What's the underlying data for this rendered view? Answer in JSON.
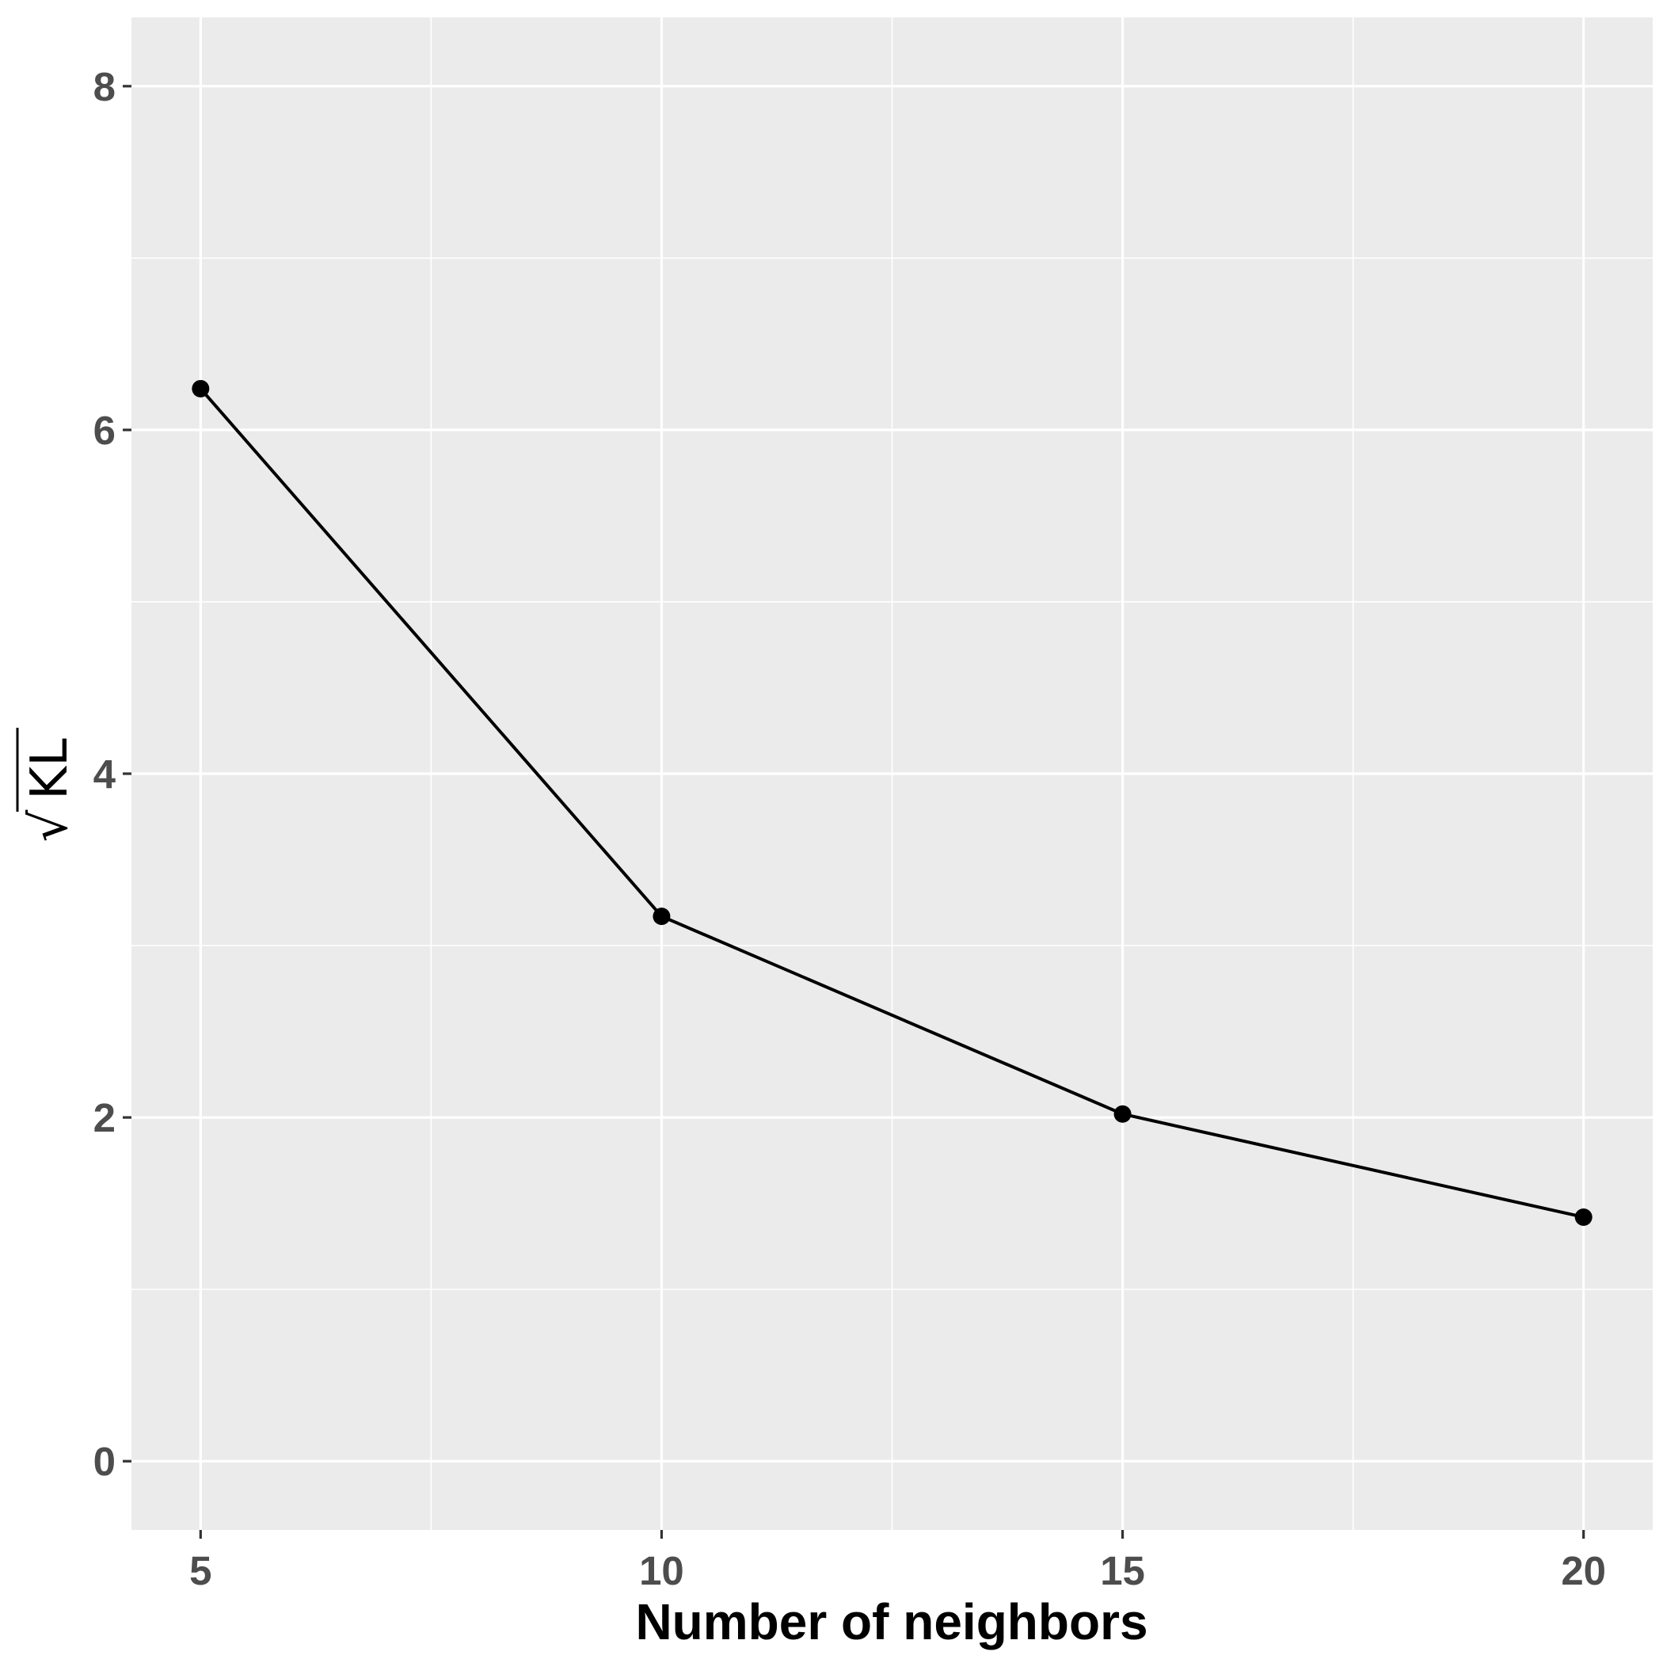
{
  "chart_data": {
    "type": "line",
    "title": "",
    "xlabel": "Number of neighbors",
    "ylabel": "KL",
    "ylabel_radical": "√",
    "x": [
      5,
      10,
      15,
      20
    ],
    "series": [
      {
        "values": [
          6.24,
          3.17,
          2.02,
          1.42
        ]
      }
    ],
    "xlim": [
      4.25,
      20.75
    ],
    "ylim": [
      -0.4,
      8.4
    ],
    "x_ticks": [
      5,
      10,
      15,
      20
    ],
    "x_tick_labels": [
      "5",
      "10",
      "15",
      "20"
    ],
    "y_ticks": [
      0,
      2,
      4,
      6,
      8
    ],
    "y_tick_labels": [
      "0",
      "2",
      "4",
      "6",
      "8"
    ],
    "x_minor_ticks": [
      7.5,
      12.5,
      17.5
    ],
    "y_minor_ticks": [
      1,
      3,
      5,
      7
    ],
    "grid": true,
    "legend": "none",
    "colors": {
      "panel_background": "#EBEBEB",
      "grid": "#FFFFFF",
      "line": "#000000",
      "point": "#000000",
      "tick_label": "#4D4D4D"
    }
  }
}
